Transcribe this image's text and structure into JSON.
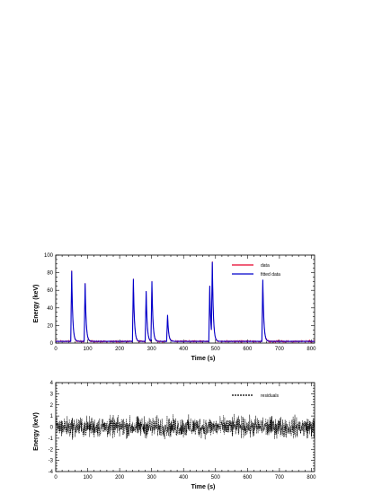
{
  "chart_data": [
    {
      "type": "line",
      "xlabel": "Time (s)",
      "ylabel": "Energy (keV)",
      "xlim": [
        0,
        810
      ],
      "ylim": [
        0,
        100
      ],
      "xticks": [
        0,
        100,
        200,
        300,
        400,
        500,
        600,
        700,
        800
      ],
      "yticks": [
        0,
        20,
        40,
        60,
        80,
        100
      ],
      "grid": false,
      "legend_position": "top-right",
      "baseline": 2,
      "noise_amplitude": 1.2,
      "series": [
        {
          "name": "data",
          "color": "#e8002a",
          "style": "solid"
        },
        {
          "name": "fitted data",
          "color": "#0000cc",
          "style": "solid"
        }
      ],
      "peaks": [
        {
          "t0": 50,
          "amplitude": 80
        },
        {
          "t0": 92,
          "amplitude": 66
        },
        {
          "t0": 243,
          "amplitude": 71
        },
        {
          "t0": 283,
          "amplitude": 57
        },
        {
          "t0": 301,
          "amplitude": 68
        },
        {
          "t0": 350,
          "amplitude": 30
        },
        {
          "t0": 482,
          "amplitude": 63
        },
        {
          "t0": 490,
          "amplitude": 85
        },
        {
          "t0": 648,
          "amplitude": 70
        }
      ]
    },
    {
      "type": "line",
      "xlabel": "Time (s)",
      "ylabel": "Energy (keV)",
      "xlim": [
        0,
        810
      ],
      "ylim": [
        -4,
        4
      ],
      "xticks": [
        0,
        100,
        200,
        300,
        400,
        500,
        600,
        700,
        800
      ],
      "yticks": [
        -4,
        -3,
        -2,
        -1,
        0,
        1,
        2,
        3,
        4
      ],
      "grid": false,
      "legend_position": "top-right",
      "noise_amplitude": 0.85,
      "series": [
        {
          "name": "residuals",
          "color": "#000000",
          "style": "dashed"
        }
      ]
    }
  ]
}
